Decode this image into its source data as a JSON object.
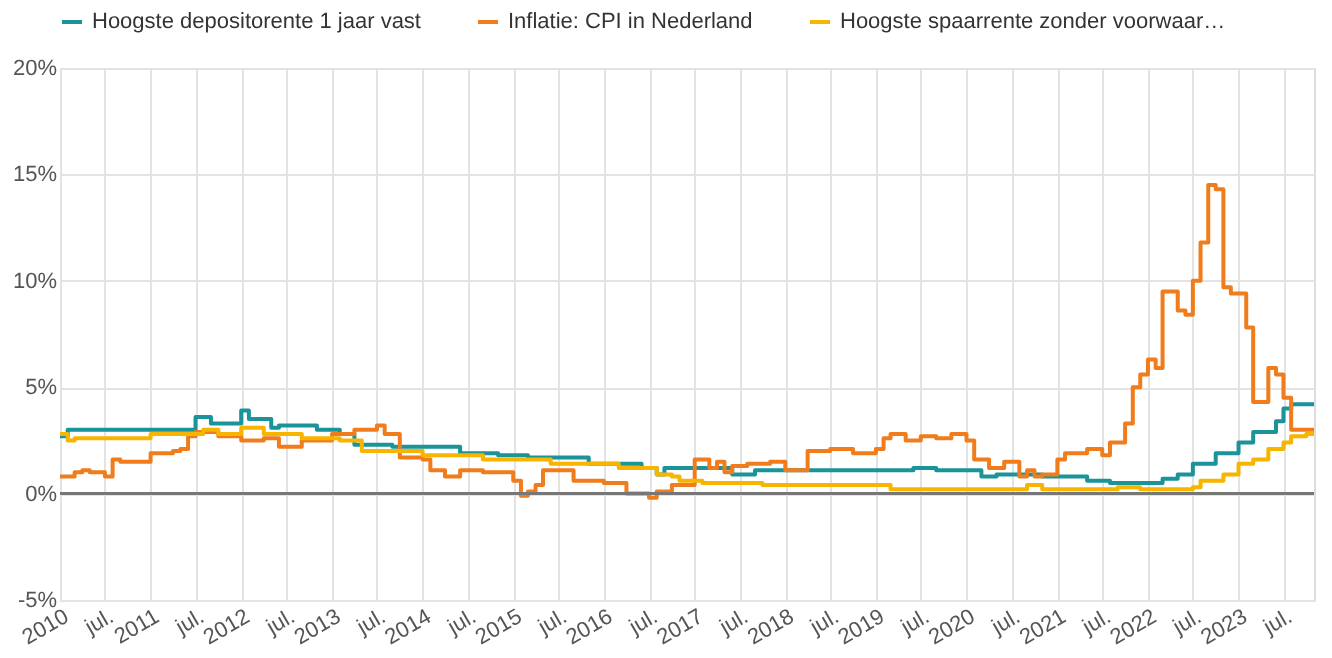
{
  "chart_data": {
    "type": "step",
    "xlim": [
      "2010-01",
      "2023-11"
    ],
    "xticks": [
      {
        "value": "2010-01",
        "label": "2010"
      },
      {
        "value": "2010-07",
        "label": "jul."
      },
      {
        "value": "2011-01",
        "label": "2011"
      },
      {
        "value": "2011-07",
        "label": "jul."
      },
      {
        "value": "2012-01",
        "label": "2012"
      },
      {
        "value": "2012-07",
        "label": "jul."
      },
      {
        "value": "2013-01",
        "label": "2013"
      },
      {
        "value": "2013-07",
        "label": "jul."
      },
      {
        "value": "2014-01",
        "label": "2014"
      },
      {
        "value": "2014-07",
        "label": "jul."
      },
      {
        "value": "2015-01",
        "label": "2015"
      },
      {
        "value": "2015-07",
        "label": "jul."
      },
      {
        "value": "2016-01",
        "label": "2016"
      },
      {
        "value": "2016-07",
        "label": "jul."
      },
      {
        "value": "2017-01",
        "label": "2017"
      },
      {
        "value": "2017-07",
        "label": "jul."
      },
      {
        "value": "2018-01",
        "label": "2018"
      },
      {
        "value": "2018-07",
        "label": "jul."
      },
      {
        "value": "2019-01",
        "label": "2019"
      },
      {
        "value": "2019-07",
        "label": "jul."
      },
      {
        "value": "2020-01",
        "label": "2020"
      },
      {
        "value": "2020-07",
        "label": "jul."
      },
      {
        "value": "2021-01",
        "label": "2021"
      },
      {
        "value": "2021-07",
        "label": "jul."
      },
      {
        "value": "2022-01",
        "label": "2022"
      },
      {
        "value": "2022-07",
        "label": "jul."
      },
      {
        "value": "2023-01",
        "label": "2023"
      },
      {
        "value": "2023-07",
        "label": "jul."
      }
    ],
    "ylim": [
      -5,
      20
    ],
    "yticks": [
      {
        "value": -5,
        "label": "-5%"
      },
      {
        "value": 0,
        "label": "0%"
      },
      {
        "value": 5,
        "label": "5%"
      },
      {
        "value": 10,
        "label": "10%"
      },
      {
        "value": 15,
        "label": "15%"
      },
      {
        "value": 20,
        "label": "20%"
      }
    ],
    "grid": true,
    "legend": "top",
    "ref_lines": [
      {
        "axis": "y",
        "value": 0,
        "color": "#777777"
      }
    ],
    "series": [
      {
        "name": "Hoogste depositorente 1 jaar vast",
        "color": "#1a9399",
        "x": [
          "2010-01",
          "2010-02",
          "2011-07",
          "2011-09",
          "2012-01",
          "2012-02",
          "2012-05",
          "2012-06",
          "2012-11",
          "2013-02",
          "2013-04",
          "2013-09",
          "2014-06",
          "2014-11",
          "2015-03",
          "2015-09",
          "2015-11",
          "2016-06",
          "2016-08",
          "2016-09",
          "2017-06",
          "2017-09",
          "2019-06",
          "2019-09",
          "2020-03",
          "2020-05",
          "2020-11",
          "2021-05",
          "2021-08",
          "2022-03",
          "2022-05",
          "2022-07",
          "2022-10",
          "2023-01",
          "2023-03",
          "2023-06",
          "2023-07",
          "2023-08",
          "2023-11"
        ],
        "values": [
          2.7,
          3.0,
          3.6,
          3.3,
          3.9,
          3.5,
          3.1,
          3.2,
          3.0,
          2.8,
          2.3,
          2.2,
          1.9,
          1.8,
          1.7,
          1.7,
          1.4,
          1.2,
          0.9,
          1.2,
          0.9,
          1.1,
          1.2,
          1.1,
          0.8,
          0.9,
          0.8,
          0.6,
          0.5,
          0.7,
          0.9,
          1.4,
          1.9,
          2.4,
          2.9,
          3.4,
          4.0,
          4.2,
          4.2
        ]
      },
      {
        "name": "Inflatie: CPI in Nederland",
        "color": "#f07c1b",
        "x": [
          "2010-01",
          "2010-03",
          "2010-04",
          "2010-05",
          "2010-07",
          "2010-08",
          "2010-09",
          "2011-01",
          "2011-04",
          "2011-05",
          "2011-06",
          "2011-07",
          "2011-10",
          "2012-01",
          "2012-04",
          "2012-06",
          "2012-09",
          "2013-01",
          "2013-04",
          "2013-07",
          "2013-08",
          "2013-10",
          "2014-01",
          "2014-02",
          "2014-04",
          "2014-06",
          "2014-09",
          "2015-01",
          "2015-02",
          "2015-03",
          "2015-04",
          "2015-05",
          "2015-09",
          "2016-01",
          "2016-04",
          "2016-07",
          "2016-08",
          "2016-10",
          "2017-01",
          "2017-03",
          "2017-04",
          "2017-05",
          "2017-06",
          "2017-08",
          "2017-11",
          "2018-01",
          "2018-04",
          "2018-07",
          "2018-10",
          "2019-01",
          "2019-02",
          "2019-03",
          "2019-05",
          "2019-07",
          "2019-09",
          "2019-11",
          "2020-01",
          "2020-02",
          "2020-04",
          "2020-06",
          "2020-08",
          "2020-09",
          "2020-10",
          "2020-11",
          "2021-01",
          "2021-02",
          "2021-05",
          "2021-07",
          "2021-08",
          "2021-10",
          "2021-11",
          "2021-12",
          "2022-01",
          "2022-02",
          "2022-03",
          "2022-05",
          "2022-06",
          "2022-07",
          "2022-08",
          "2022-09",
          "2022-10",
          "2022-11",
          "2022-12",
          "2023-02",
          "2023-03",
          "2023-05",
          "2023-06",
          "2023-07",
          "2023-08",
          "2023-11"
        ],
        "values": [
          0.8,
          1.0,
          1.1,
          1.0,
          0.8,
          1.6,
          1.5,
          1.9,
          2.0,
          2.1,
          2.7,
          2.9,
          2.7,
          2.5,
          2.6,
          2.2,
          2.5,
          2.8,
          3.0,
          3.2,
          2.8,
          1.7,
          1.6,
          1.1,
          0.8,
          1.1,
          1.0,
          0.6,
          -0.1,
          0.1,
          0.4,
          1.1,
          0.6,
          0.5,
          0.0,
          -0.2,
          0.1,
          0.4,
          1.6,
          1.2,
          1.5,
          1.0,
          1.3,
          1.4,
          1.5,
          1.1,
          2.0,
          2.1,
          1.9,
          2.1,
          2.6,
          2.8,
          2.5,
          2.7,
          2.6,
          2.8,
          2.5,
          1.6,
          1.2,
          1.5,
          0.8,
          1.1,
          0.8,
          0.9,
          1.6,
          1.9,
          2.1,
          1.8,
          2.4,
          3.3,
          5.0,
          5.6,
          6.3,
          5.9,
          9.5,
          8.6,
          8.4,
          10.0,
          11.8,
          14.5,
          14.3,
          9.7,
          9.4,
          7.8,
          4.3,
          5.9,
          5.6,
          4.5,
          3.0,
          3.0
        ]
      },
      {
        "name": "Hoogste spaarrente zonder voorwaar…",
        "color": "#f7b500",
        "x": [
          "2010-01",
          "2010-02",
          "2010-03",
          "2011-01",
          "2011-08",
          "2011-10",
          "2012-01",
          "2012-04",
          "2012-09",
          "2013-02",
          "2013-05",
          "2014-01",
          "2014-09",
          "2015-06",
          "2016-03",
          "2016-08",
          "2016-10",
          "2016-11",
          "2017-02",
          "2017-10",
          "2019-03",
          "2020-09",
          "2020-11",
          "2021-09",
          "2021-12",
          "2022-07",
          "2022-08",
          "2022-11",
          "2023-01",
          "2023-03",
          "2023-05",
          "2023-07",
          "2023-08",
          "2023-10",
          "2023-11"
        ],
        "values": [
          2.8,
          2.5,
          2.6,
          2.8,
          3.0,
          2.8,
          3.1,
          2.8,
          2.6,
          2.5,
          2.0,
          1.8,
          1.6,
          1.4,
          1.2,
          0.9,
          0.8,
          0.6,
          0.5,
          0.4,
          0.2,
          0.4,
          0.2,
          0.3,
          0.2,
          0.3,
          0.6,
          0.9,
          1.4,
          1.6,
          2.1,
          2.4,
          2.7,
          2.8,
          2.8
        ]
      }
    ]
  }
}
